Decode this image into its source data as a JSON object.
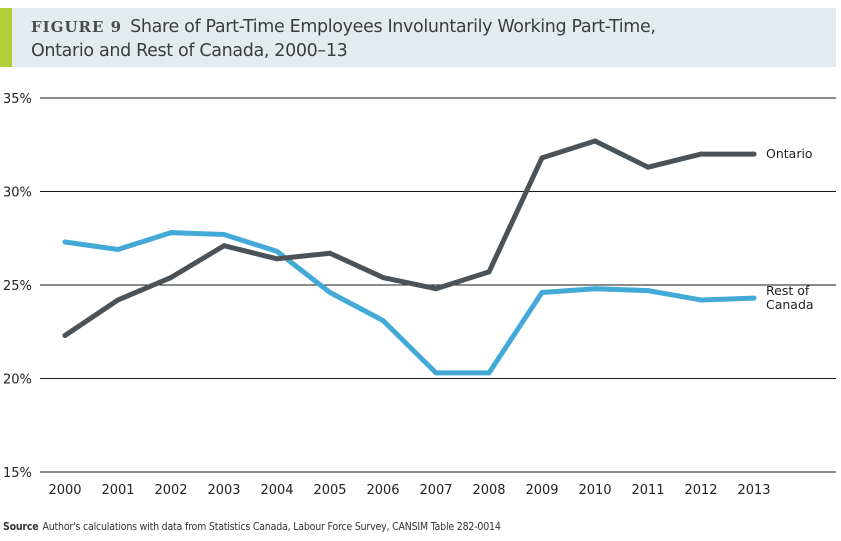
{
  "header": {
    "figure_label": "FIGURE 9",
    "title_line1": "Share of Part-Time Employees Involuntarily Working Part-Time,",
    "title_line2": "Ontario and Rest of Canada, 2000–13"
  },
  "source": {
    "label": "Source",
    "text": "Author's calculations with data from Statistics Canada, Labour Force Survey, CANSIM Table 282-0014"
  },
  "colors": {
    "ontario": "#4b5358",
    "rest_of_canada": "#43aad8",
    "accent": "#b3cf3a",
    "header_bg": "#e4ebee"
  },
  "chart_data": {
    "type": "line",
    "x": [
      "2000",
      "2001",
      "2002",
      "2003",
      "2004",
      "2005",
      "2006",
      "2007",
      "2008",
      "2009",
      "2010",
      "2011",
      "2012",
      "2013"
    ],
    "y_ticks": [
      15,
      20,
      25,
      30,
      35
    ],
    "y_tick_labels": [
      "15%",
      "20%",
      "25%",
      "30%",
      "35%"
    ],
    "ylim": [
      15,
      35
    ],
    "grid": true,
    "series": [
      {
        "name": "Ontario",
        "label_lines": [
          "Ontario"
        ],
        "color": "#4b5358",
        "values": [
          22.3,
          24.2,
          25.4,
          27.1,
          26.4,
          26.7,
          25.4,
          24.8,
          25.7,
          31.8,
          32.7,
          31.3,
          32.0,
          32.0
        ]
      },
      {
        "name": "Rest of Canada",
        "label_lines": [
          "Rest of",
          "Canada"
        ],
        "color": "#43aad8",
        "values": [
          27.3,
          26.9,
          27.8,
          27.7,
          26.8,
          24.6,
          23.1,
          20.3,
          20.3,
          24.6,
          24.8,
          24.7,
          24.2,
          24.3
        ]
      }
    ]
  }
}
